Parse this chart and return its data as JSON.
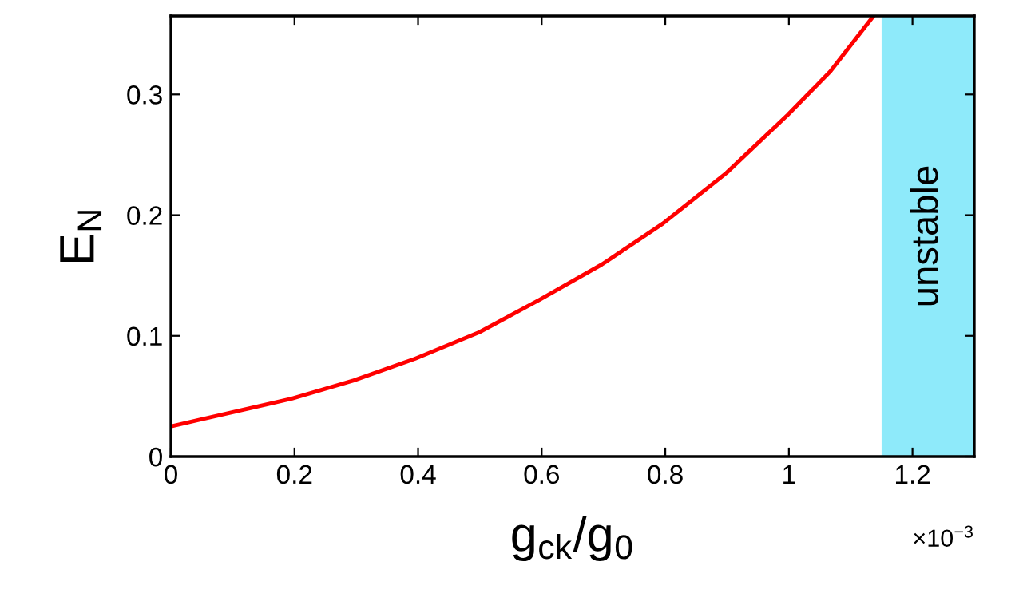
{
  "chart_data": {
    "type": "line",
    "xlabel": "g$_{ck}$/g$_{0}$",
    "ylabel": "E$_{N}$",
    "x": [
      0,
      0.196,
      0.296,
      0.395,
      0.499,
      0.597,
      0.697,
      0.796,
      0.899,
      0.998,
      1.067,
      1.137
    ],
    "series": [
      {
        "color": "#ff0000",
        "values": [
          0.025,
          0.048,
          0.063,
          0.081,
          0.103,
          0.13,
          0.159,
          0.193,
          0.235,
          0.283,
          0.319,
          0.365
        ]
      }
    ],
    "xlim": [
      0,
      1.3
    ],
    "ylim": [
      0,
      0.365
    ],
    "xticks": [
      0,
      0.2,
      0.4,
      0.6,
      0.8,
      1,
      1.2
    ],
    "yticks": [
      0,
      0.1,
      0.2,
      0.3
    ],
    "bands": [
      {
        "axis": "x",
        "from": 1.15,
        "to": 1.3,
        "label": "unstable",
        "color": "#8eeafa"
      }
    ],
    "annotations": [
      "×10$^{−3}$"
    ],
    "grid": false,
    "marker": "none",
    "line_style": "solid"
  }
}
